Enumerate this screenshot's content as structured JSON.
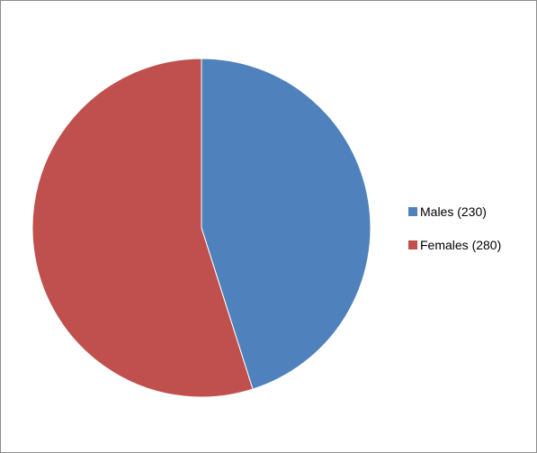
{
  "chart_data": {
    "type": "pie",
    "series": [
      {
        "name": "Males (230)",
        "value": 230,
        "color": "#4F81BD"
      },
      {
        "name": "Females (280)",
        "value": 280,
        "color": "#C0504D"
      }
    ],
    "start_angle_deg": 0,
    "direction": "clockwise",
    "legend_position": "right"
  }
}
